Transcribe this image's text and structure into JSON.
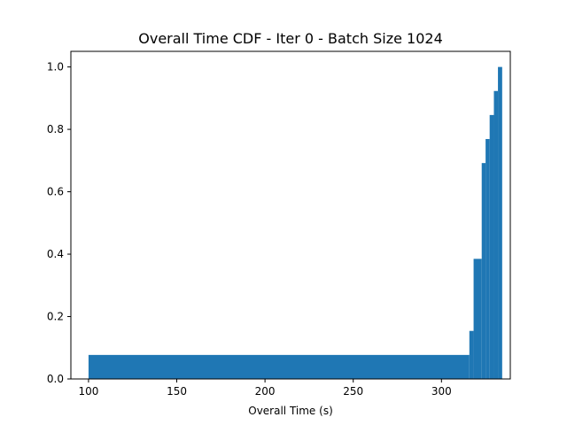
{
  "chart_data": {
    "type": "bar",
    "title": "Overall Time CDF - Iter 0 - Batch Size 1024",
    "xlabel": "Overall Time (s)",
    "ylabel": "",
    "xlim": [
      90,
      339
    ],
    "ylim": [
      0,
      1.05
    ],
    "xticks": [
      100,
      150,
      200,
      250,
      300
    ],
    "yticks": [
      0.0,
      0.2,
      0.4,
      0.6,
      0.8,
      1.0
    ],
    "xtick_labels": [
      "100",
      "150",
      "200",
      "250",
      "300"
    ],
    "ytick_labels": [
      "0.0",
      "0.2",
      "0.4",
      "0.6",
      "0.8",
      "1.0"
    ],
    "grid": false,
    "bar_color": "#1f77b4",
    "bins": [
      {
        "x0": 100.0,
        "x1": 315.8,
        "value": 0.077
      },
      {
        "x0": 315.8,
        "x1": 318.2,
        "value": 0.154
      },
      {
        "x0": 318.2,
        "x1": 322.8,
        "value": 0.385
      },
      {
        "x0": 322.8,
        "x1": 325.0,
        "value": 0.692
      },
      {
        "x0": 325.0,
        "x1": 327.3,
        "value": 0.769
      },
      {
        "x0": 327.3,
        "x1": 329.7,
        "value": 0.846
      },
      {
        "x0": 329.7,
        "x1": 332.0,
        "value": 0.923
      },
      {
        "x0": 332.0,
        "x1": 334.4,
        "value": 1.0
      }
    ]
  }
}
